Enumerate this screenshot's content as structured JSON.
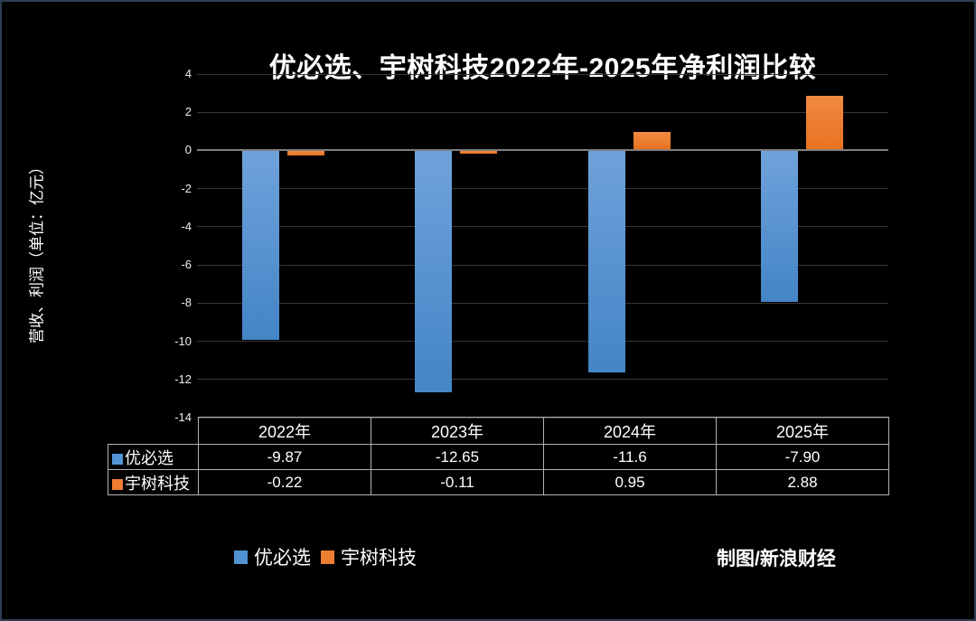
{
  "title": "优必选、宇树科技2022年-2025年净利润比较",
  "y_axis_title": "营收、利润（单位：亿元）",
  "credit": "制图/新浪财经",
  "colors": {
    "blue_top": "#6FA2DB",
    "blue_bottom": "#4385C6",
    "blue_flat": "#5193D2",
    "orange_top": "#F08A43",
    "orange_bottom": "#E8721F",
    "orange_flat": "#ED7D31",
    "zero_line": "#7F7F7F",
    "gridline": "#363636",
    "table_border": "#B2B2B2",
    "background": "#000000",
    "frame_border": "#2F3E53",
    "text": "#FFFFFF"
  },
  "chart_data": {
    "type": "bar",
    "title": "优必选、宇树科技2022年-2025年净利润比较",
    "ylabel": "营收、利润（单位：亿元）",
    "categories": [
      "2022年",
      "2023年",
      "2024年",
      "2025年"
    ],
    "series": [
      {
        "name": "优必选",
        "color_key": "blue",
        "values": [
          -9.87,
          -12.65,
          -11.6,
          -7.9
        ],
        "display": [
          "-9.87",
          "-12.65",
          "-11.6",
          "-7.90"
        ]
      },
      {
        "name": "宇树科技",
        "color_key": "orange",
        "values": [
          -0.22,
          -0.11,
          0.95,
          2.88
        ],
        "display": [
          "-0.22",
          "-0.11",
          "0.95",
          "2.88"
        ]
      }
    ],
    "ylim": [
      -14,
      4
    ],
    "yticks": [
      4,
      2,
      0,
      -2,
      -4,
      -6,
      -8,
      -10,
      -12,
      -14
    ],
    "grid": true,
    "legend_position": "bottom",
    "data_table_shown": true
  },
  "legend": {
    "items": [
      {
        "label": "优必选",
        "color_key": "blue"
      },
      {
        "label": "宇树科技",
        "color_key": "orange"
      }
    ]
  }
}
